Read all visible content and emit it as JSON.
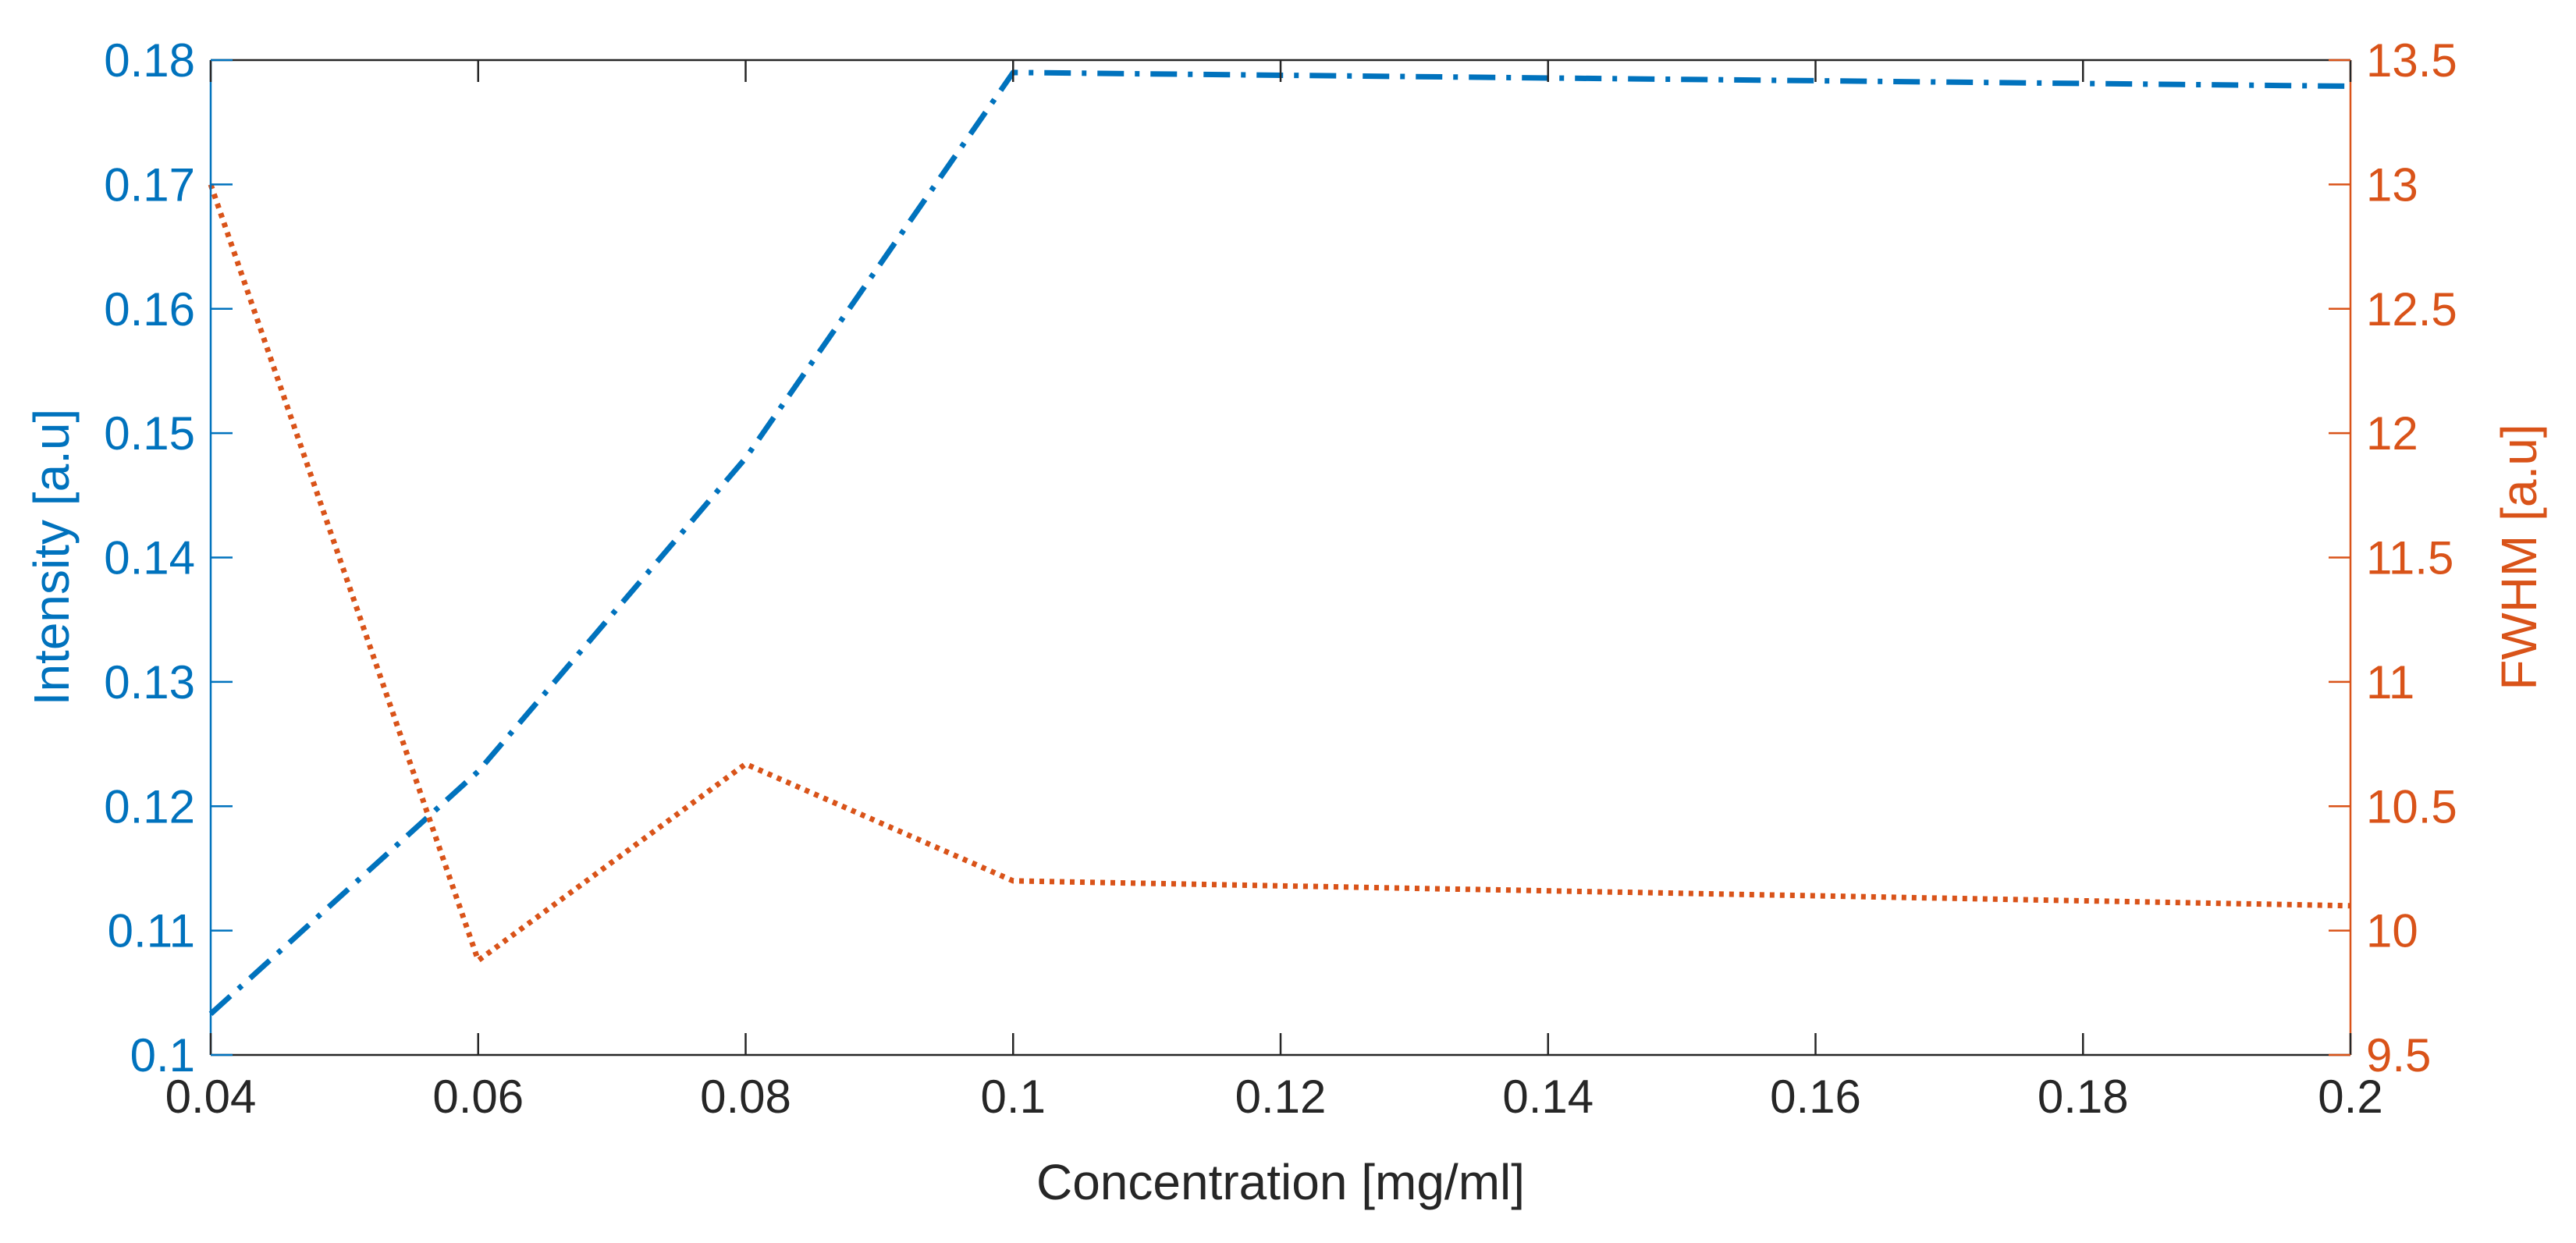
{
  "chart_data": {
    "type": "line",
    "title": "",
    "xlabel": "Concentration [mg/ml]",
    "ylabel_left": "Intensity [a.u]",
    "ylabel_right": "FWHM [a.u]",
    "xlim": [
      0.04,
      0.2
    ],
    "ylim_left": [
      0.1,
      0.18
    ],
    "ylim_right": [
      9.5,
      13.5
    ],
    "grid": false,
    "legend": "none",
    "x_ticks": [
      "0.04",
      "0.06",
      "0.08",
      "0.1",
      "0.12",
      "0.14",
      "0.16",
      "0.18",
      "0.2"
    ],
    "y_left_ticks": [
      "0.1",
      "0.11",
      "0.12",
      "0.13",
      "0.14",
      "0.15",
      "0.16",
      "0.17",
      "0.18"
    ],
    "y_right_ticks": [
      "9.5",
      "10",
      "10.5",
      "11",
      "11.5",
      "12",
      "12.5",
      "13",
      "13.5"
    ],
    "series": [
      {
        "axis": "left",
        "color": "#0072BD",
        "line_style": "dash-dot",
        "x": [
          0.04,
          0.06,
          0.08,
          0.1,
          0.2
        ],
        "values": [
          0.1033,
          0.1228,
          0.148,
          0.179,
          0.1779
        ]
      },
      {
        "axis": "right",
        "color": "#D95319",
        "line_style": "dotted",
        "x": [
          0.04,
          0.06,
          0.08,
          0.1,
          0.2
        ],
        "values": [
          13.0,
          9.88,
          10.67,
          10.2,
          10.1
        ]
      }
    ]
  }
}
